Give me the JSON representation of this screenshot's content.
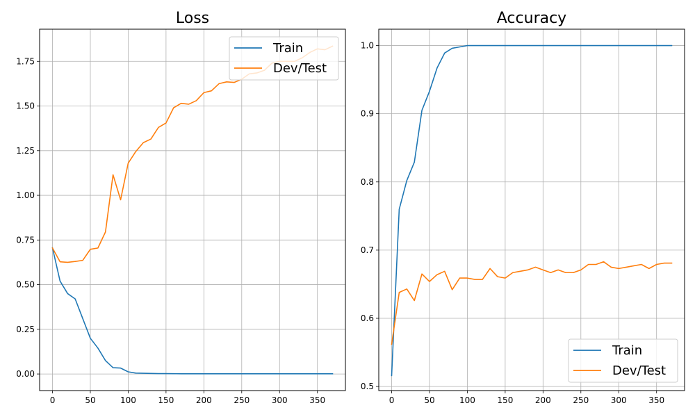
{
  "chart_data": [
    {
      "type": "line",
      "title": "Loss",
      "xlim": [
        -17,
        387
      ],
      "ylim": [
        -0.093,
        1.93
      ],
      "xticks": [
        0,
        50,
        100,
        150,
        200,
        250,
        300,
        350
      ],
      "yticks": [
        0.0,
        0.25,
        0.5,
        0.75,
        1.0,
        1.25,
        1.5,
        1.75
      ],
      "ytick_labels": [
        "0.00",
        "0.25",
        "0.50",
        "0.75",
        "1.00",
        "1.25",
        "1.50",
        "1.75"
      ],
      "grid": true,
      "legend_position": "top-right",
      "series": [
        {
          "name": "Train",
          "color": "#1f77b4",
          "x": [
            0,
            10,
            20,
            30,
            40,
            50,
            60,
            70,
            80,
            90,
            100,
            110,
            120,
            130,
            140,
            150,
            160,
            170,
            180,
            190,
            200,
            210,
            220,
            230,
            240,
            250,
            260,
            270,
            280,
            290,
            300,
            310,
            320,
            330,
            340,
            350,
            360,
            370
          ],
          "y": [
            0.706,
            0.52,
            0.45,
            0.42,
            0.31,
            0.2,
            0.145,
            0.075,
            0.035,
            0.033,
            0.012,
            0.005,
            0.004,
            0.003,
            0.002,
            0.002,
            0.0015,
            0.0012,
            0.001,
            0.001,
            0.001,
            0.001,
            0.001,
            0.001,
            0.001,
            0.001,
            0.001,
            0.001,
            0.001,
            0.001,
            0.001,
            0.001,
            0.001,
            0.001,
            0.001,
            0.001,
            0.001,
            0.001
          ]
        },
        {
          "name": "Dev/Test",
          "color": "#ff7f0e",
          "x": [
            0,
            10,
            20,
            30,
            40,
            50,
            60,
            70,
            80,
            90,
            100,
            110,
            120,
            130,
            140,
            150,
            160,
            170,
            180,
            190,
            200,
            210,
            220,
            230,
            240,
            250,
            260,
            270,
            280,
            290,
            300,
            310,
            320,
            330,
            340,
            350,
            360,
            370
          ],
          "y": [
            0.705,
            0.628,
            0.625,
            0.63,
            0.636,
            0.698,
            0.705,
            0.795,
            1.115,
            0.975,
            1.18,
            1.245,
            1.295,
            1.315,
            1.38,
            1.405,
            1.49,
            1.515,
            1.51,
            1.53,
            1.575,
            1.585,
            1.625,
            1.635,
            1.632,
            1.65,
            1.68,
            1.685,
            1.7,
            1.74,
            1.75,
            1.75,
            1.75,
            1.77,
            1.8,
            1.82,
            1.815,
            1.835
          ]
        }
      ]
    },
    {
      "type": "line",
      "title": "Accuracy",
      "xlim": [
        -17,
        387
      ],
      "ylim": [
        0.494,
        1.024
      ],
      "xticks": [
        0,
        50,
        100,
        150,
        200,
        250,
        300,
        350
      ],
      "yticks": [
        0.5,
        0.6,
        0.7,
        0.8,
        0.9,
        1.0
      ],
      "ytick_labels": [
        "0.5",
        "0.6",
        "0.7",
        "0.8",
        "0.9",
        "1.0"
      ],
      "grid": true,
      "legend_position": "bottom-right",
      "series": [
        {
          "name": "Train",
          "color": "#1f77b4",
          "x": [
            0,
            10,
            20,
            30,
            40,
            50,
            60,
            70,
            80,
            90,
            100,
            110,
            120,
            130,
            140,
            150,
            160,
            170,
            180,
            190,
            200,
            210,
            220,
            230,
            240,
            250,
            260,
            270,
            280,
            290,
            300,
            310,
            320,
            330,
            340,
            350,
            360,
            370
          ],
          "y": [
            0.516,
            0.76,
            0.802,
            0.829,
            0.905,
            0.933,
            0.967,
            0.989,
            0.996,
            0.998,
            1.0,
            1.0,
            1.0,
            1.0,
            1.0,
            1.0,
            1.0,
            1.0,
            1.0,
            1.0,
            1.0,
            1.0,
            1.0,
            1.0,
            1.0,
            1.0,
            1.0,
            1.0,
            1.0,
            1.0,
            1.0,
            1.0,
            1.0,
            1.0,
            1.0,
            1.0,
            1.0,
            1.0
          ]
        },
        {
          "name": "Dev/Test",
          "color": "#ff7f0e",
          "x": [
            0,
            10,
            20,
            30,
            40,
            50,
            60,
            70,
            80,
            90,
            100,
            110,
            120,
            130,
            140,
            150,
            160,
            170,
            180,
            190,
            200,
            210,
            220,
            230,
            240,
            250,
            260,
            270,
            280,
            290,
            300,
            310,
            320,
            330,
            340,
            350,
            360,
            370
          ],
          "y": [
            0.562,
            0.638,
            0.643,
            0.626,
            0.665,
            0.654,
            0.664,
            0.669,
            0.642,
            0.659,
            0.659,
            0.657,
            0.657,
            0.673,
            0.661,
            0.659,
            0.667,
            0.669,
            0.671,
            0.675,
            0.671,
            0.667,
            0.671,
            0.667,
            0.667,
            0.671,
            0.679,
            0.679,
            0.683,
            0.675,
            0.673,
            0.675,
            0.677,
            0.679,
            0.673,
            0.679,
            0.681,
            0.681
          ]
        }
      ]
    }
  ]
}
